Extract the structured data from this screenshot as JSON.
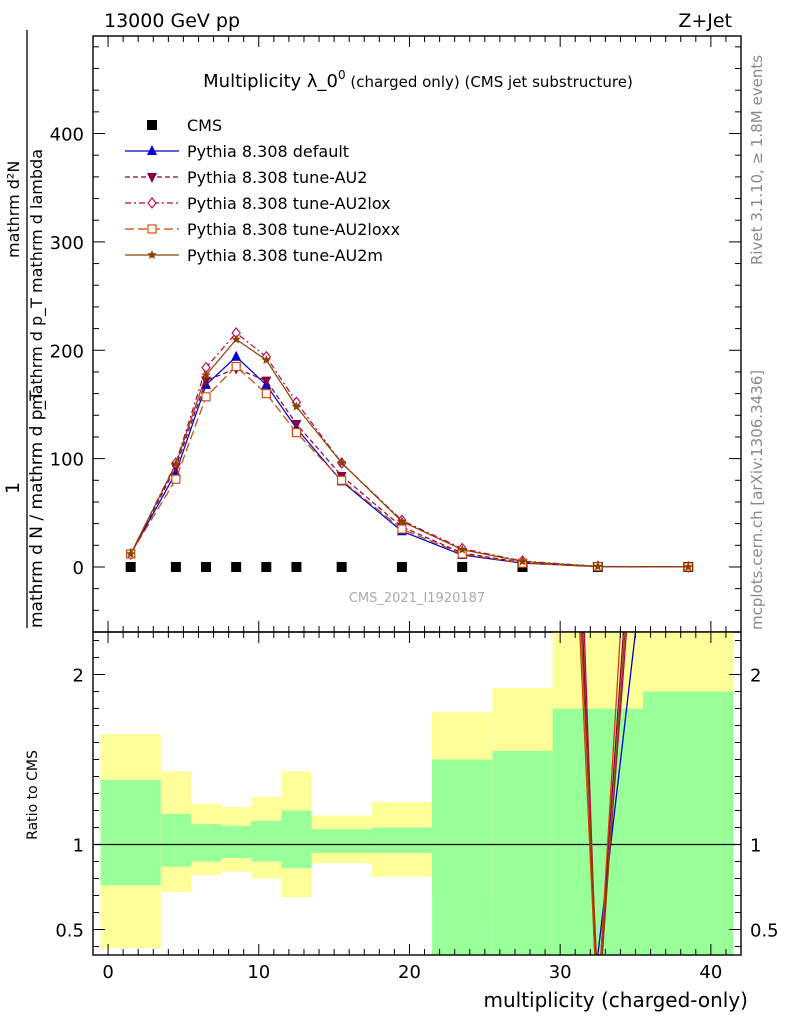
{
  "header": {
    "energy_label": "13000 GeV pp",
    "process_label": "Z+Jet",
    "title_main": "Multiplicity λ_0",
    "title_sup": "0",
    "title_sub": " (charged only) (CMS jet substructure)",
    "watermark": "CMS_2021_I1920187",
    "rivet_label": "Rivet 3.1.10, ≥ 1.8M events",
    "mcplots_label": "mcplots.cern.ch [arXiv:1306.3436]"
  },
  "chart_data": [
    {
      "type": "line",
      "title": "Multiplicity λ_0^0 (charged only) (CMS jet substructure)",
      "xlabel": "multiplicity (charged-only)",
      "ylabel": "1 / (mathrm d N / mathrm d p_T) · mathrm d²N / (mathrm d p_T mathrm d lambda)",
      "ylabel_numerator": "1",
      "ylabel_denominator": "mathrm d N / mathrm d p_T",
      "ylabel_numerator2": "mathrm d²N",
      "ylabel_denominator2": "mathrm d p_T mathrm d lambda",
      "xlim": [
        -1,
        42
      ],
      "ylim": [
        -60,
        490
      ],
      "x_ticks": [
        0,
        10,
        20,
        30,
        40
      ],
      "y_ticks": [
        0,
        100,
        200,
        300,
        400
      ],
      "legend_position": "top-left",
      "x": [
        1.5,
        4.5,
        6.5,
        8.5,
        10.5,
        12.5,
        15.5,
        19.5,
        23.5,
        27.5,
        32.5,
        38.5
      ],
      "series": [
        {
          "name": "CMS",
          "color": "#000000",
          "marker": "square",
          "line": "none",
          "values": [
            0,
            0,
            0,
            0,
            0,
            0,
            0,
            0,
            0,
            0,
            0,
            0
          ]
        },
        {
          "name": "Pythia 8.308 default",
          "color": "#0000cc",
          "marker": "triangle-up",
          "line": "solid",
          "values": [
            12,
            87,
            168,
            194,
            168,
            128,
            79,
            33,
            11,
            3.5,
            0.3,
            0.02
          ]
        },
        {
          "name": "Pythia 8.308 tune-AU2",
          "color": "#880044",
          "marker": "triangle-down",
          "line": "dashed",
          "values": [
            12,
            92,
            172,
            183,
            172,
            132,
            84,
            37,
            13,
            4,
            0.4,
            0.03
          ]
        },
        {
          "name": "Pythia 8.308 tune-AU2lox",
          "color": "#bb0055",
          "marker": "diamond",
          "line": "dashdot",
          "values": [
            12,
            96,
            184,
            216,
            194,
            152,
            96,
            43,
            17,
            5.5,
            0.6,
            0.04
          ]
        },
        {
          "name": "Pythia 8.308 tune-AU2loxx",
          "color": "#cc4400",
          "marker": "square-open",
          "line": "longdash",
          "values": [
            12,
            81,
            157,
            185,
            160,
            124,
            80,
            35,
            12,
            3.5,
            0.3,
            0.02
          ]
        },
        {
          "name": "Pythia 8.308 tune-AU2m",
          "color": "#884400",
          "marker": "star",
          "line": "solid",
          "values": [
            12,
            95,
            177,
            210,
            191,
            148,
            96,
            42,
            16,
            5,
            0.5,
            0.03
          ]
        }
      ]
    },
    {
      "type": "area",
      "ylabel": "Ratio to CMS",
      "xlabel": "multiplicity (charged-only)",
      "xlim": [
        -1,
        42
      ],
      "ylim": [
        0.35,
        2.25
      ],
      "x_ticks": [
        0,
        10,
        20,
        30,
        40
      ],
      "y_ticks": [
        0.5,
        1,
        2
      ],
      "bins": [
        [
          -0.5,
          3.5
        ],
        [
          3.5,
          5.5
        ],
        [
          5.5,
          7.5
        ],
        [
          7.5,
          9.5
        ],
        [
          9.5,
          11.5
        ],
        [
          11.5,
          13.5
        ],
        [
          13.5,
          17.5
        ],
        [
          17.5,
          21.5
        ],
        [
          21.5,
          25.5
        ],
        [
          25.5,
          29.5
        ],
        [
          29.5,
          35.5
        ],
        [
          35.5,
          41.5
        ]
      ],
      "band_inner": [
        [
          0.76,
          1.38
        ],
        [
          0.87,
          1.18
        ],
        [
          0.9,
          1.12
        ],
        [
          0.92,
          1.11
        ],
        [
          0.9,
          1.14
        ],
        [
          0.86,
          1.2
        ],
        [
          0.95,
          1.09
        ],
        [
          0.95,
          1.1
        ],
        [
          0.35,
          1.5
        ],
        [
          0.35,
          1.55
        ],
        [
          0.35,
          1.8
        ],
        [
          0.35,
          1.9
        ]
      ],
      "band_outer": [
        [
          0.39,
          1.65
        ],
        [
          0.72,
          1.43
        ],
        [
          0.82,
          1.24
        ],
        [
          0.84,
          1.22
        ],
        [
          0.8,
          1.28
        ],
        [
          0.69,
          1.43
        ],
        [
          0.89,
          1.17
        ],
        [
          0.81,
          1.25
        ],
        [
          0.69,
          1.78
        ],
        [
          0.57,
          1.92
        ],
        [
          0.35,
          2.25
        ],
        [
          0.35,
          2.25
        ]
      ],
      "reference_line": 1,
      "ratio_curves": [
        {
          "name": "Pythia 8.308 default",
          "color": "#0000cc",
          "points": [
            [
              32.5,
              0.35
            ],
            [
              35.0,
              2.25
            ]
          ]
        },
        {
          "name": "Pythia 8.308 tune-AU2",
          "color": "#880044",
          "points": [
            [
              31.5,
              2.25
            ],
            [
              32.3,
              0.35
            ],
            [
              32.7,
              0.35
            ],
            [
              34.2,
              2.25
            ]
          ]
        },
        {
          "name": "Pythia 8.308 tune-AU2lox",
          "color": "#bb0055",
          "points": [
            [
              31.6,
              2.25
            ],
            [
              32.35,
              0.35
            ],
            [
              32.75,
              0.35
            ],
            [
              34.4,
              2.25
            ]
          ]
        },
        {
          "name": "Pythia 8.308 tune-AU2loxx",
          "color": "#cc4400",
          "points": [
            [
              31.3,
              2.25
            ],
            [
              32.3,
              0.35
            ],
            [
              32.7,
              0.35
            ],
            [
              34.0,
              2.25
            ]
          ]
        },
        {
          "name": "Pythia 8.308 tune-AU2m",
          "color": "#884400",
          "points": [
            [
              31.4,
              2.25
            ],
            [
              32.4,
              0.35
            ],
            [
              32.8,
              0.35
            ],
            [
              34.3,
              2.25
            ]
          ]
        }
      ]
    }
  ]
}
